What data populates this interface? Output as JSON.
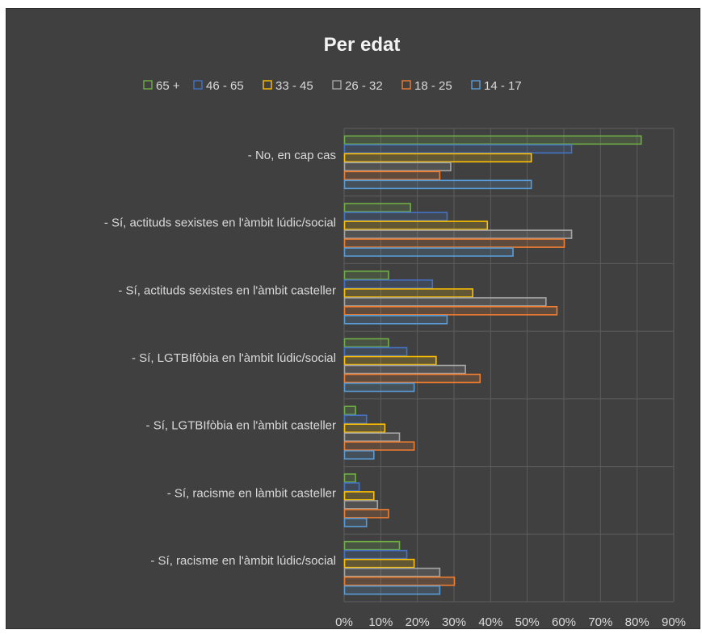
{
  "chart_data": {
    "type": "bar",
    "orientation": "horizontal",
    "title": "Per edat",
    "legend_position": "top",
    "categories": [
      "- No, en cap cas",
      "- Sí, actituds sexistes en l'àmbit lúdic/social",
      "- Sí, actituds sexistes en l'àmbit casteller",
      "- Sí, LGTBIfòbia en l'àmbit lúdic/social",
      "- Sí, LGTBIfòbia en l'àmbit casteller",
      "- Sí, racisme en làmbit casteller",
      "- Sí, racisme en l'àmbit lúdic/social"
    ],
    "series": [
      {
        "name": "65 +",
        "color": "#70ad47",
        "values": [
          81,
          18,
          12,
          12,
          3,
          3,
          15
        ]
      },
      {
        "name": "46 - 65",
        "color": "#4472c4",
        "values": [
          62,
          28,
          24,
          17,
          6,
          4,
          17
        ]
      },
      {
        "name": "33 - 45",
        "color": "#ffc000",
        "values": [
          51,
          39,
          35,
          25,
          11,
          8,
          19
        ]
      },
      {
        "name": "26 - 32",
        "color": "#a5a5a5",
        "values": [
          29,
          62,
          55,
          33,
          15,
          9,
          26
        ]
      },
      {
        "name": "18 - 25",
        "color": "#ed7d31",
        "values": [
          26,
          60,
          58,
          37,
          19,
          12,
          30
        ]
      },
      {
        "name": "14 - 17",
        "color": "#5b9bd5",
        "values": [
          51,
          46,
          28,
          19,
          8,
          6,
          26
        ]
      }
    ],
    "legend_order": [
      "65 +",
      "46 - 65",
      "33 - 45",
      "26 - 32",
      "18 - 25",
      "14 - 17"
    ],
    "xlim": [
      0,
      90
    ],
    "xticks": [
      "0%",
      "10%",
      "20%",
      "30%",
      "40%",
      "50%",
      "60%",
      "70%",
      "80%",
      "90%"
    ],
    "xtick_values": [
      0,
      10,
      20,
      30,
      40,
      50,
      60,
      70,
      80,
      90
    ],
    "grid": true
  }
}
